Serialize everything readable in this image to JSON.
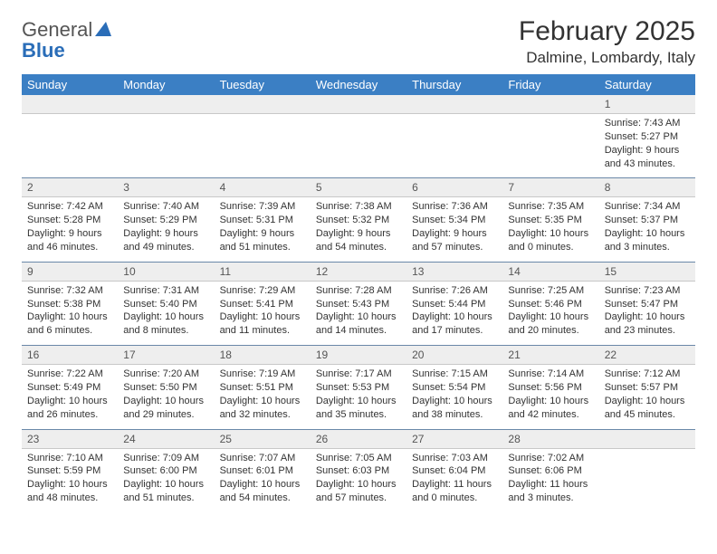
{
  "logo": {
    "word1": "General",
    "word2": "Blue"
  },
  "title": "February 2025",
  "location": "Dalmine, Lombardy, Italy",
  "colors": {
    "header_bg": "#3b7fc4",
    "header_text": "#ffffff",
    "daynum_bg": "#eeeeee",
    "row_border": "#6a88a8",
    "logo_blue": "#2a6db8"
  },
  "day_names": [
    "Sunday",
    "Monday",
    "Tuesday",
    "Wednesday",
    "Thursday",
    "Friday",
    "Saturday"
  ],
  "weeks": [
    [
      null,
      null,
      null,
      null,
      null,
      null,
      {
        "n": "1",
        "sr": "Sunrise: 7:43 AM",
        "ss": "Sunset: 5:27 PM",
        "d1": "Daylight: 9 hours",
        "d2": "and 43 minutes."
      }
    ],
    [
      {
        "n": "2",
        "sr": "Sunrise: 7:42 AM",
        "ss": "Sunset: 5:28 PM",
        "d1": "Daylight: 9 hours",
        "d2": "and 46 minutes."
      },
      {
        "n": "3",
        "sr": "Sunrise: 7:40 AM",
        "ss": "Sunset: 5:29 PM",
        "d1": "Daylight: 9 hours",
        "d2": "and 49 minutes."
      },
      {
        "n": "4",
        "sr": "Sunrise: 7:39 AM",
        "ss": "Sunset: 5:31 PM",
        "d1": "Daylight: 9 hours",
        "d2": "and 51 minutes."
      },
      {
        "n": "5",
        "sr": "Sunrise: 7:38 AM",
        "ss": "Sunset: 5:32 PM",
        "d1": "Daylight: 9 hours",
        "d2": "and 54 minutes."
      },
      {
        "n": "6",
        "sr": "Sunrise: 7:36 AM",
        "ss": "Sunset: 5:34 PM",
        "d1": "Daylight: 9 hours",
        "d2": "and 57 minutes."
      },
      {
        "n": "7",
        "sr": "Sunrise: 7:35 AM",
        "ss": "Sunset: 5:35 PM",
        "d1": "Daylight: 10 hours",
        "d2": "and 0 minutes."
      },
      {
        "n": "8",
        "sr": "Sunrise: 7:34 AM",
        "ss": "Sunset: 5:37 PM",
        "d1": "Daylight: 10 hours",
        "d2": "and 3 minutes."
      }
    ],
    [
      {
        "n": "9",
        "sr": "Sunrise: 7:32 AM",
        "ss": "Sunset: 5:38 PM",
        "d1": "Daylight: 10 hours",
        "d2": "and 6 minutes."
      },
      {
        "n": "10",
        "sr": "Sunrise: 7:31 AM",
        "ss": "Sunset: 5:40 PM",
        "d1": "Daylight: 10 hours",
        "d2": "and 8 minutes."
      },
      {
        "n": "11",
        "sr": "Sunrise: 7:29 AM",
        "ss": "Sunset: 5:41 PM",
        "d1": "Daylight: 10 hours",
        "d2": "and 11 minutes."
      },
      {
        "n": "12",
        "sr": "Sunrise: 7:28 AM",
        "ss": "Sunset: 5:43 PM",
        "d1": "Daylight: 10 hours",
        "d2": "and 14 minutes."
      },
      {
        "n": "13",
        "sr": "Sunrise: 7:26 AM",
        "ss": "Sunset: 5:44 PM",
        "d1": "Daylight: 10 hours",
        "d2": "and 17 minutes."
      },
      {
        "n": "14",
        "sr": "Sunrise: 7:25 AM",
        "ss": "Sunset: 5:46 PM",
        "d1": "Daylight: 10 hours",
        "d2": "and 20 minutes."
      },
      {
        "n": "15",
        "sr": "Sunrise: 7:23 AM",
        "ss": "Sunset: 5:47 PM",
        "d1": "Daylight: 10 hours",
        "d2": "and 23 minutes."
      }
    ],
    [
      {
        "n": "16",
        "sr": "Sunrise: 7:22 AM",
        "ss": "Sunset: 5:49 PM",
        "d1": "Daylight: 10 hours",
        "d2": "and 26 minutes."
      },
      {
        "n": "17",
        "sr": "Sunrise: 7:20 AM",
        "ss": "Sunset: 5:50 PM",
        "d1": "Daylight: 10 hours",
        "d2": "and 29 minutes."
      },
      {
        "n": "18",
        "sr": "Sunrise: 7:19 AM",
        "ss": "Sunset: 5:51 PM",
        "d1": "Daylight: 10 hours",
        "d2": "and 32 minutes."
      },
      {
        "n": "19",
        "sr": "Sunrise: 7:17 AM",
        "ss": "Sunset: 5:53 PM",
        "d1": "Daylight: 10 hours",
        "d2": "and 35 minutes."
      },
      {
        "n": "20",
        "sr": "Sunrise: 7:15 AM",
        "ss": "Sunset: 5:54 PM",
        "d1": "Daylight: 10 hours",
        "d2": "and 38 minutes."
      },
      {
        "n": "21",
        "sr": "Sunrise: 7:14 AM",
        "ss": "Sunset: 5:56 PM",
        "d1": "Daylight: 10 hours",
        "d2": "and 42 minutes."
      },
      {
        "n": "22",
        "sr": "Sunrise: 7:12 AM",
        "ss": "Sunset: 5:57 PM",
        "d1": "Daylight: 10 hours",
        "d2": "and 45 minutes."
      }
    ],
    [
      {
        "n": "23",
        "sr": "Sunrise: 7:10 AM",
        "ss": "Sunset: 5:59 PM",
        "d1": "Daylight: 10 hours",
        "d2": "and 48 minutes."
      },
      {
        "n": "24",
        "sr": "Sunrise: 7:09 AM",
        "ss": "Sunset: 6:00 PM",
        "d1": "Daylight: 10 hours",
        "d2": "and 51 minutes."
      },
      {
        "n": "25",
        "sr": "Sunrise: 7:07 AM",
        "ss": "Sunset: 6:01 PM",
        "d1": "Daylight: 10 hours",
        "d2": "and 54 minutes."
      },
      {
        "n": "26",
        "sr": "Sunrise: 7:05 AM",
        "ss": "Sunset: 6:03 PM",
        "d1": "Daylight: 10 hours",
        "d2": "and 57 minutes."
      },
      {
        "n": "27",
        "sr": "Sunrise: 7:03 AM",
        "ss": "Sunset: 6:04 PM",
        "d1": "Daylight: 11 hours",
        "d2": "and 0 minutes."
      },
      {
        "n": "28",
        "sr": "Sunrise: 7:02 AM",
        "ss": "Sunset: 6:06 PM",
        "d1": "Daylight: 11 hours",
        "d2": "and 3 minutes."
      },
      null
    ]
  ]
}
